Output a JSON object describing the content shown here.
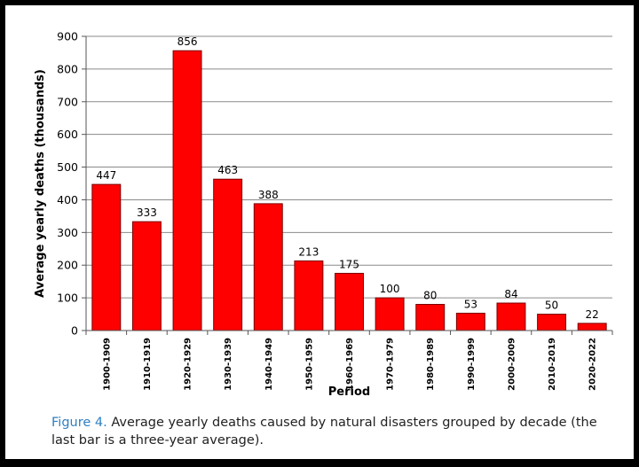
{
  "chart_data": {
    "type": "bar",
    "categories": [
      "1900-1909",
      "1910-1919",
      "1920-1929",
      "1930-1939",
      "1940-1949",
      "1950-1959",
      "1960-1969",
      "1970-1979",
      "1980-1989",
      "1990-1999",
      "2000-2009",
      "2010-2019",
      "2020-2022"
    ],
    "values": [
      447,
      333,
      856,
      463,
      388,
      213,
      175,
      100,
      80,
      53,
      84,
      50,
      22
    ],
    "xlabel": "Period",
    "ylabel": "Average yearly deaths (thousands)",
    "ylim": [
      0,
      900
    ],
    "yticks": [
      "0",
      "100",
      "200",
      "300",
      "400",
      "500",
      "600",
      "700",
      "800",
      "900"
    ],
    "grid": "horizontal",
    "bar_color": "#ff0000",
    "bar_stroke": "#7a0000"
  },
  "caption": {
    "label": "Figure 4.",
    "text": " Average yearly deaths caused by natural disasters grouped by decade (the last bar is a three-year average)."
  }
}
